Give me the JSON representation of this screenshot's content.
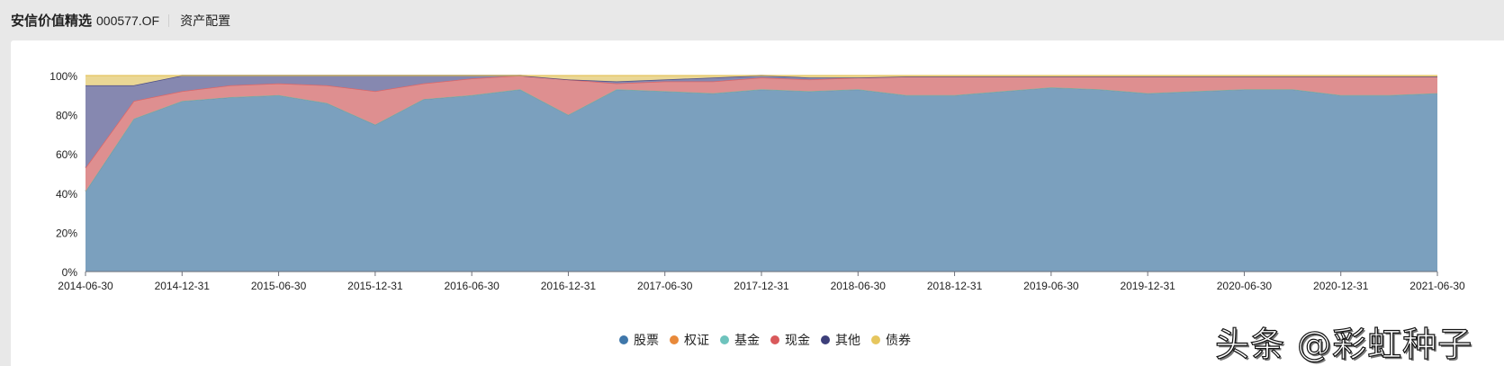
{
  "header": {
    "fund_name": "安信价值精选",
    "fund_code": "000577.OF",
    "section": "资产配置"
  },
  "watermark": "头条 @彩虹种子",
  "colors": {
    "股票": "#3f77aa",
    "权证": "#e8893a",
    "基金": "#6ec3bd",
    "现金": "#d9595b",
    "其他": "#3d3f7a",
    "债券": "#e6c65e"
  },
  "legend": [
    {
      "name": "股票",
      "color": "#3f77aa"
    },
    {
      "name": "权证",
      "color": "#e8893a"
    },
    {
      "name": "基金",
      "color": "#6ec3bd"
    },
    {
      "name": "现金",
      "color": "#d9595b"
    },
    {
      "name": "其他",
      "color": "#3d3f7a"
    },
    {
      "name": "债券",
      "color": "#e6c65e"
    }
  ],
  "chart_data": {
    "type": "area",
    "stacked": true,
    "title": "",
    "xlabel": "",
    "ylabel": "",
    "ylim": [
      0,
      100
    ],
    "y_ticks": [
      "0%",
      "20%",
      "40%",
      "60%",
      "80%",
      "100%"
    ],
    "x_tick_labels": [
      "2014-06-30",
      "2014-12-31",
      "2015-06-30",
      "2015-12-31",
      "2016-06-30",
      "2016-12-31",
      "2017-06-30",
      "2017-12-31",
      "2018-06-30",
      "2018-12-31",
      "2019-06-30",
      "2019-12-31",
      "2020-06-30",
      "2020-12-31",
      "2021-06-30"
    ],
    "grid": true,
    "legend_position": "bottom",
    "x": [
      "2014-06-30",
      "2014-09-30",
      "2014-12-31",
      "2015-03-31",
      "2015-06-30",
      "2015-09-30",
      "2015-12-31",
      "2016-03-31",
      "2016-06-30",
      "2016-09-30",
      "2016-12-31",
      "2017-03-31",
      "2017-06-30",
      "2017-09-30",
      "2017-12-31",
      "2018-03-31",
      "2018-06-30",
      "2018-09-30",
      "2018-12-31",
      "2019-03-31",
      "2019-06-30",
      "2019-09-30",
      "2019-12-31",
      "2020-03-31",
      "2020-06-30",
      "2020-09-30",
      "2020-12-31",
      "2021-03-31",
      "2021-06-30"
    ],
    "series": [
      {
        "name": "股票",
        "values": [
          41,
          78,
          87,
          89,
          90,
          86,
          75,
          88,
          90,
          93,
          80,
          93,
          92,
          91,
          93,
          92,
          93,
          90,
          90,
          92,
          94,
          93,
          91,
          92,
          93,
          93,
          90,
          90,
          91
        ]
      },
      {
        "name": "权证",
        "values": [
          0,
          0,
          0,
          0,
          0,
          0,
          0,
          0,
          0,
          0,
          0,
          0,
          0,
          0,
          0,
          0,
          0,
          0,
          0,
          0,
          0,
          0,
          0,
          0,
          0,
          0,
          0,
          0,
          0
        ]
      },
      {
        "name": "基金",
        "values": [
          0,
          0,
          0,
          0,
          0,
          0,
          0,
          0,
          0,
          0,
          0,
          0,
          0,
          0,
          0,
          0,
          0,
          0,
          0,
          0,
          0,
          0,
          0,
          0,
          0,
          0,
          0,
          0,
          0
        ]
      },
      {
        "name": "现金",
        "values": [
          12,
          9,
          5,
          6,
          6,
          9,
          17,
          8,
          8.5,
          7,
          18,
          3,
          5,
          6,
          6,
          6,
          6,
          9.5,
          9.5,
          7.5,
          5.5,
          6.5,
          8.5,
          7.5,
          6.5,
          6.5,
          9.5,
          9.5,
          8.5
        ]
      },
      {
        "name": "其他",
        "values": [
          42,
          8,
          8,
          5,
          4,
          5,
          8,
          4,
          1.5,
          0,
          0,
          1,
          1,
          2,
          1,
          1,
          0,
          0,
          0,
          0,
          0,
          0,
          0,
          0,
          0,
          0,
          0,
          0,
          0
        ]
      },
      {
        "name": "债券",
        "values": [
          5,
          5,
          0,
          0,
          0,
          0,
          0,
          0,
          0,
          0,
          2,
          3,
          2,
          1,
          0,
          1,
          1,
          0.5,
          0.5,
          0.5,
          0.5,
          0.5,
          0.5,
          0.5,
          0.5,
          0.5,
          0.5,
          0.5,
          0.5
        ]
      }
    ]
  }
}
